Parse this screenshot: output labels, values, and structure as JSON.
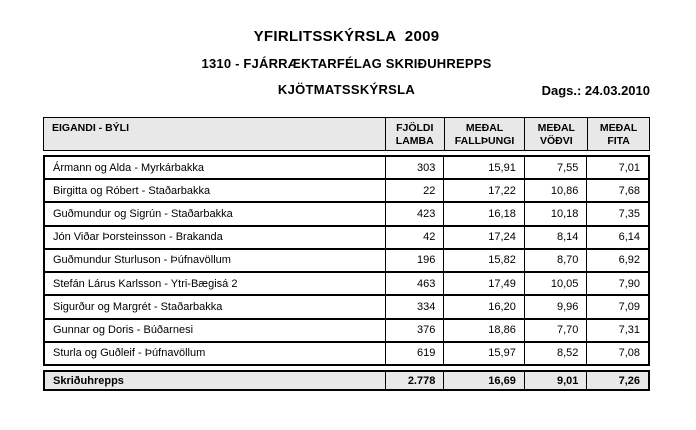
{
  "report": {
    "title": "YFIRLITSSKÝRSLA  2009",
    "subtitle": "1310 - FJÁRRÆKTARFÉLAG SKRIÐUHREPPS",
    "section_title": "KJÖTMATSSKÝRSLA",
    "date_label": "Dags.: 24.03.2010"
  },
  "table": {
    "headers": [
      {
        "label": "EIGANDI - BÝLI"
      },
      {
        "line1": "FJÖLDI",
        "line2": "LAMBA"
      },
      {
        "line1": "MEÐAL",
        "line2": "FALLÞUNGI"
      },
      {
        "line1": "MEÐAL",
        "line2": "VÖÐVI"
      },
      {
        "line1": "MEÐAL",
        "line2": "FITA"
      }
    ],
    "rows": [
      {
        "owner": "Ármann og Alda - Myrkárbakka",
        "lambs": "303",
        "carcass": "15,91",
        "muscle": "7,55",
        "fat": "7,01"
      },
      {
        "owner": "Birgitta og Róbert - Staðarbakka",
        "lambs": "22",
        "carcass": "17,22",
        "muscle": "10,86",
        "fat": "7,68"
      },
      {
        "owner": "Guðmundur og Sigrún - Staðarbakka",
        "lambs": "423",
        "carcass": "16,18",
        "muscle": "10,18",
        "fat": "7,35"
      },
      {
        "owner": "Jón Viðar Þorsteinsson - Brakanda",
        "lambs": "42",
        "carcass": "17,24",
        "muscle": "8,14",
        "fat": "6,14"
      },
      {
        "owner": "Guðmundur Sturluson - Þúfnavöllum",
        "lambs": "196",
        "carcass": "15,82",
        "muscle": "8,70",
        "fat": "6,92"
      },
      {
        "owner": "Stefán Lárus Karlsson - Ytri-Bægisá 2",
        "lambs": "463",
        "carcass": "17,49",
        "muscle": "10,05",
        "fat": "7,90"
      },
      {
        "owner": "Sigurður og Margrét - Staðarbakka",
        "lambs": "334",
        "carcass": "16,20",
        "muscle": "9,96",
        "fat": "7,09"
      },
      {
        "owner": "Gunnar og Doris - Búðarnesi",
        "lambs": "376",
        "carcass": "18,86",
        "muscle": "7,70",
        "fat": "7,31"
      },
      {
        "owner": "Sturla og Guðleif - Þúfnavöllum",
        "lambs": "619",
        "carcass": "15,97",
        "muscle": "8,52",
        "fat": "7,08"
      }
    ],
    "total": {
      "label": "Skriðuhrepps",
      "lambs": "2.778",
      "carcass": "16,69",
      "muscle": "9,01",
      "fat": "7,26"
    }
  },
  "colors": {
    "header_bg": "#e8e8e8",
    "total_bg": "#e8e8e8",
    "border": "#000000",
    "text": "#000000"
  }
}
